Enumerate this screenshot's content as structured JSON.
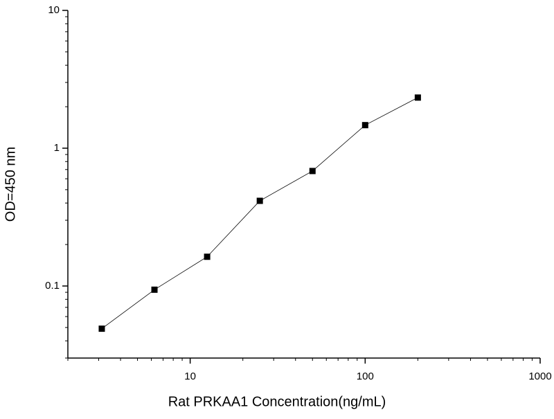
{
  "chart_data": {
    "type": "line",
    "x_label": "Rat PRKAA1 Concentration(ng/mL)",
    "y_label": "OD=450 nm",
    "x": [
      3.125,
      6.25,
      12.5,
      25,
      50,
      100,
      200
    ],
    "series": [
      {
        "color": "#000000",
        "values": [
          0.049,
          0.094,
          0.163,
          0.415,
          0.683,
          1.47,
          2.33
        ]
      }
    ],
    "xlim": [
      2,
      1000
    ],
    "ylim": [
      0.03,
      10
    ],
    "xticks": [
      10,
      100,
      1000
    ],
    "yticks": [
      0.1,
      1,
      10
    ],
    "x_log": true,
    "y_log": true,
    "minor_ticks": true,
    "marker": "square"
  }
}
